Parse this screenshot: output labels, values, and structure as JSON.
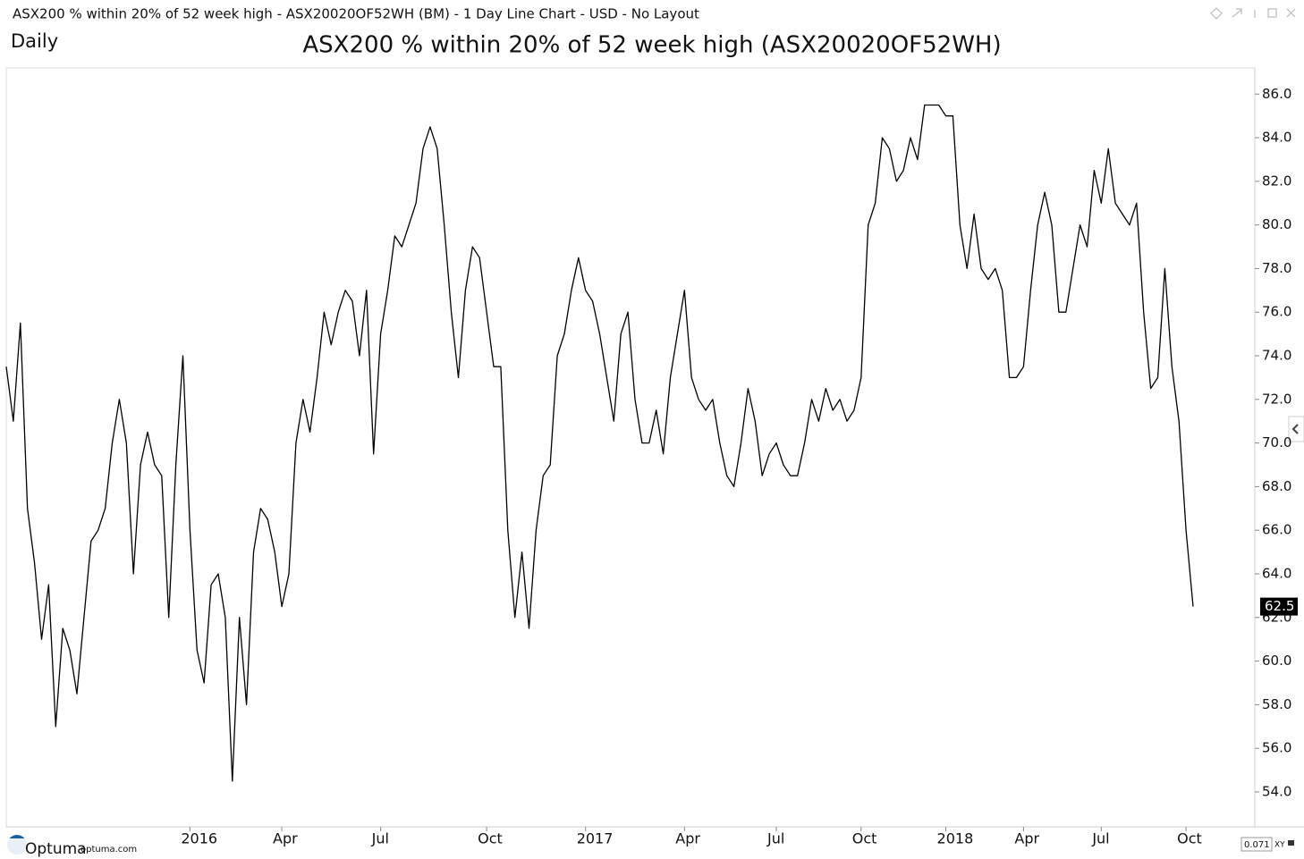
{
  "window_title": "ASX200 % within 20% of 52 week high - ASX20020OF52WH (BM) - 1 Day Line Chart - USD - No Layout",
  "timeframe": "Daily",
  "branding": {
    "logo": "Optuma",
    "site": "optuma.com"
  },
  "status": {
    "zoom": "0.071",
    "mode": "XY"
  },
  "chart_data": {
    "type": "line",
    "title": "ASX200 % within 20% of 52 week high (ASX20020OF52WH)",
    "color": "#000000",
    "ylim": [
      52.4,
      87.2
    ],
    "yticks": [
      {
        "value": 54,
        "label": "54.0"
      },
      {
        "value": 56,
        "label": "56.0"
      },
      {
        "value": 58,
        "label": "58.0"
      },
      {
        "value": 60,
        "label": "60.0"
      },
      {
        "value": 62,
        "label": "62.0"
      },
      {
        "value": 64,
        "label": "64.0"
      },
      {
        "value": 66,
        "label": "66.0"
      },
      {
        "value": 68,
        "label": "68.0"
      },
      {
        "value": 70,
        "label": "70.0"
      },
      {
        "value": 72,
        "label": "72.0"
      },
      {
        "value": 74,
        "label": "74.0"
      },
      {
        "value": 76,
        "label": "76.0"
      },
      {
        "value": 78,
        "label": "78.0"
      },
      {
        "value": 80,
        "label": "80.0"
      },
      {
        "value": 82,
        "label": "82.0"
      },
      {
        "value": 84,
        "label": "84.0"
      },
      {
        "value": 86,
        "label": "86.0"
      }
    ],
    "categories": [
      null,
      null,
      null,
      null,
      null,
      null,
      null,
      null,
      null,
      null,
      null,
      null,
      null,
      null,
      null,
      null,
      null,
      null,
      null,
      null,
      null,
      null,
      null,
      null,
      null,
      null,
      "2016",
      null,
      null,
      null,
      null,
      null,
      null,
      null,
      null,
      null,
      null,
      null,
      null,
      "Apr",
      null,
      null,
      null,
      null,
      null,
      null,
      null,
      null,
      null,
      null,
      null,
      null,
      null,
      "Jul",
      null,
      null,
      null,
      null,
      null,
      null,
      null,
      null,
      null,
      null,
      null,
      null,
      null,
      null,
      "Oct",
      null,
      null,
      null,
      null,
      null,
      null,
      null,
      null,
      null,
      null,
      null,
      null,
      null,
      "2017",
      null,
      null,
      null,
      null,
      null,
      null,
      null,
      null,
      null,
      null,
      null,
      null,
      null,
      "Apr",
      null,
      null,
      null,
      null,
      null,
      null,
      null,
      null,
      null,
      null,
      null,
      null,
      "Jul",
      null,
      null,
      null,
      null,
      null,
      null,
      null,
      null,
      null,
      null,
      null,
      "Oct",
      null,
      null,
      null,
      null,
      null,
      null,
      null,
      null,
      null,
      null,
      null,
      "2018",
      null,
      null,
      null,
      null,
      null,
      null,
      null,
      null,
      null,
      null,
      "Apr",
      null,
      null,
      null,
      null,
      null,
      null,
      null,
      null,
      null,
      null,
      "Jul",
      null,
      null,
      null,
      null,
      null,
      null,
      null,
      null,
      null,
      null,
      null,
      "Oct",
      null
    ],
    "values": [
      73.5,
      71,
      75.5,
      67,
      64.5,
      61,
      63.5,
      57,
      61.5,
      60.5,
      58.5,
      62,
      65.5,
      66,
      67,
      70,
      72,
      70,
      64,
      69,
      70.5,
      69,
      68.5,
      62,
      69,
      74,
      66,
      60.5,
      59,
      63.5,
      64,
      62,
      54.5,
      62,
      58,
      65,
      67,
      66.5,
      65,
      62.5,
      64,
      70,
      72,
      70.5,
      73,
      76,
      74.5,
      76,
      77,
      76.5,
      74,
      77,
      69.5,
      75,
      77,
      79.5,
      79,
      80,
      81,
      83.5,
      84.5,
      83.5,
      80,
      76,
      73,
      77,
      79,
      78.5,
      76,
      73.5,
      73.5,
      66,
      62,
      65,
      61.5,
      66,
      68.5,
      69,
      74,
      75,
      77,
      78.5,
      77,
      76.5,
      75,
      73,
      71,
      75,
      76,
      72,
      70,
      70,
      71.5,
      69.5,
      73,
      75,
      77,
      73,
      72,
      71.5,
      72,
      70,
      68.5,
      68,
      70,
      72.5,
      71,
      68.5,
      69.5,
      70,
      69,
      68.5,
      68.5,
      70,
      72,
      71,
      72.5,
      71.5,
      72,
      71,
      71.5,
      73,
      80,
      81,
      84,
      83.5,
      82,
      82.5,
      84,
      83,
      85.5,
      85.5,
      85.5,
      85,
      85,
      80,
      78,
      80.5,
      78,
      77.5,
      78,
      77,
      73,
      73,
      73.5,
      77,
      80,
      81.5,
      80,
      76,
      76,
      78,
      80,
      79,
      82.5,
      81,
      83.5,
      81,
      80.5,
      80,
      81,
      76,
      72.5,
      73,
      78,
      73.5,
      71,
      66,
      62.5
    ]
  }
}
